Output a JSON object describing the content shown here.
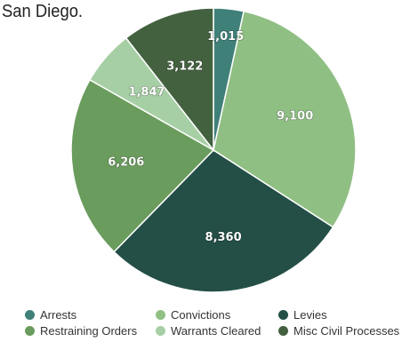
{
  "heading": "San Diego.",
  "chart_data": {
    "type": "pie",
    "categories": [
      "Arrests",
      "Convictions",
      "Levies",
      "Restraining Orders",
      "Warrants Cleared",
      "Misc Civil Processes"
    ],
    "values": [
      1015,
      9100,
      8360,
      6206,
      1847,
      3122
    ],
    "value_labels": [
      "1,015",
      "9,100",
      "8,360",
      "6,206",
      "1,847",
      "3,122"
    ],
    "colors": [
      "#3f8078",
      "#90bf84",
      "#244f46",
      "#6a9c5d",
      "#a7cfa5",
      "#43613f"
    ],
    "legend_position": "bottom",
    "start_angle_deg": 0,
    "direction": "clockwise"
  }
}
